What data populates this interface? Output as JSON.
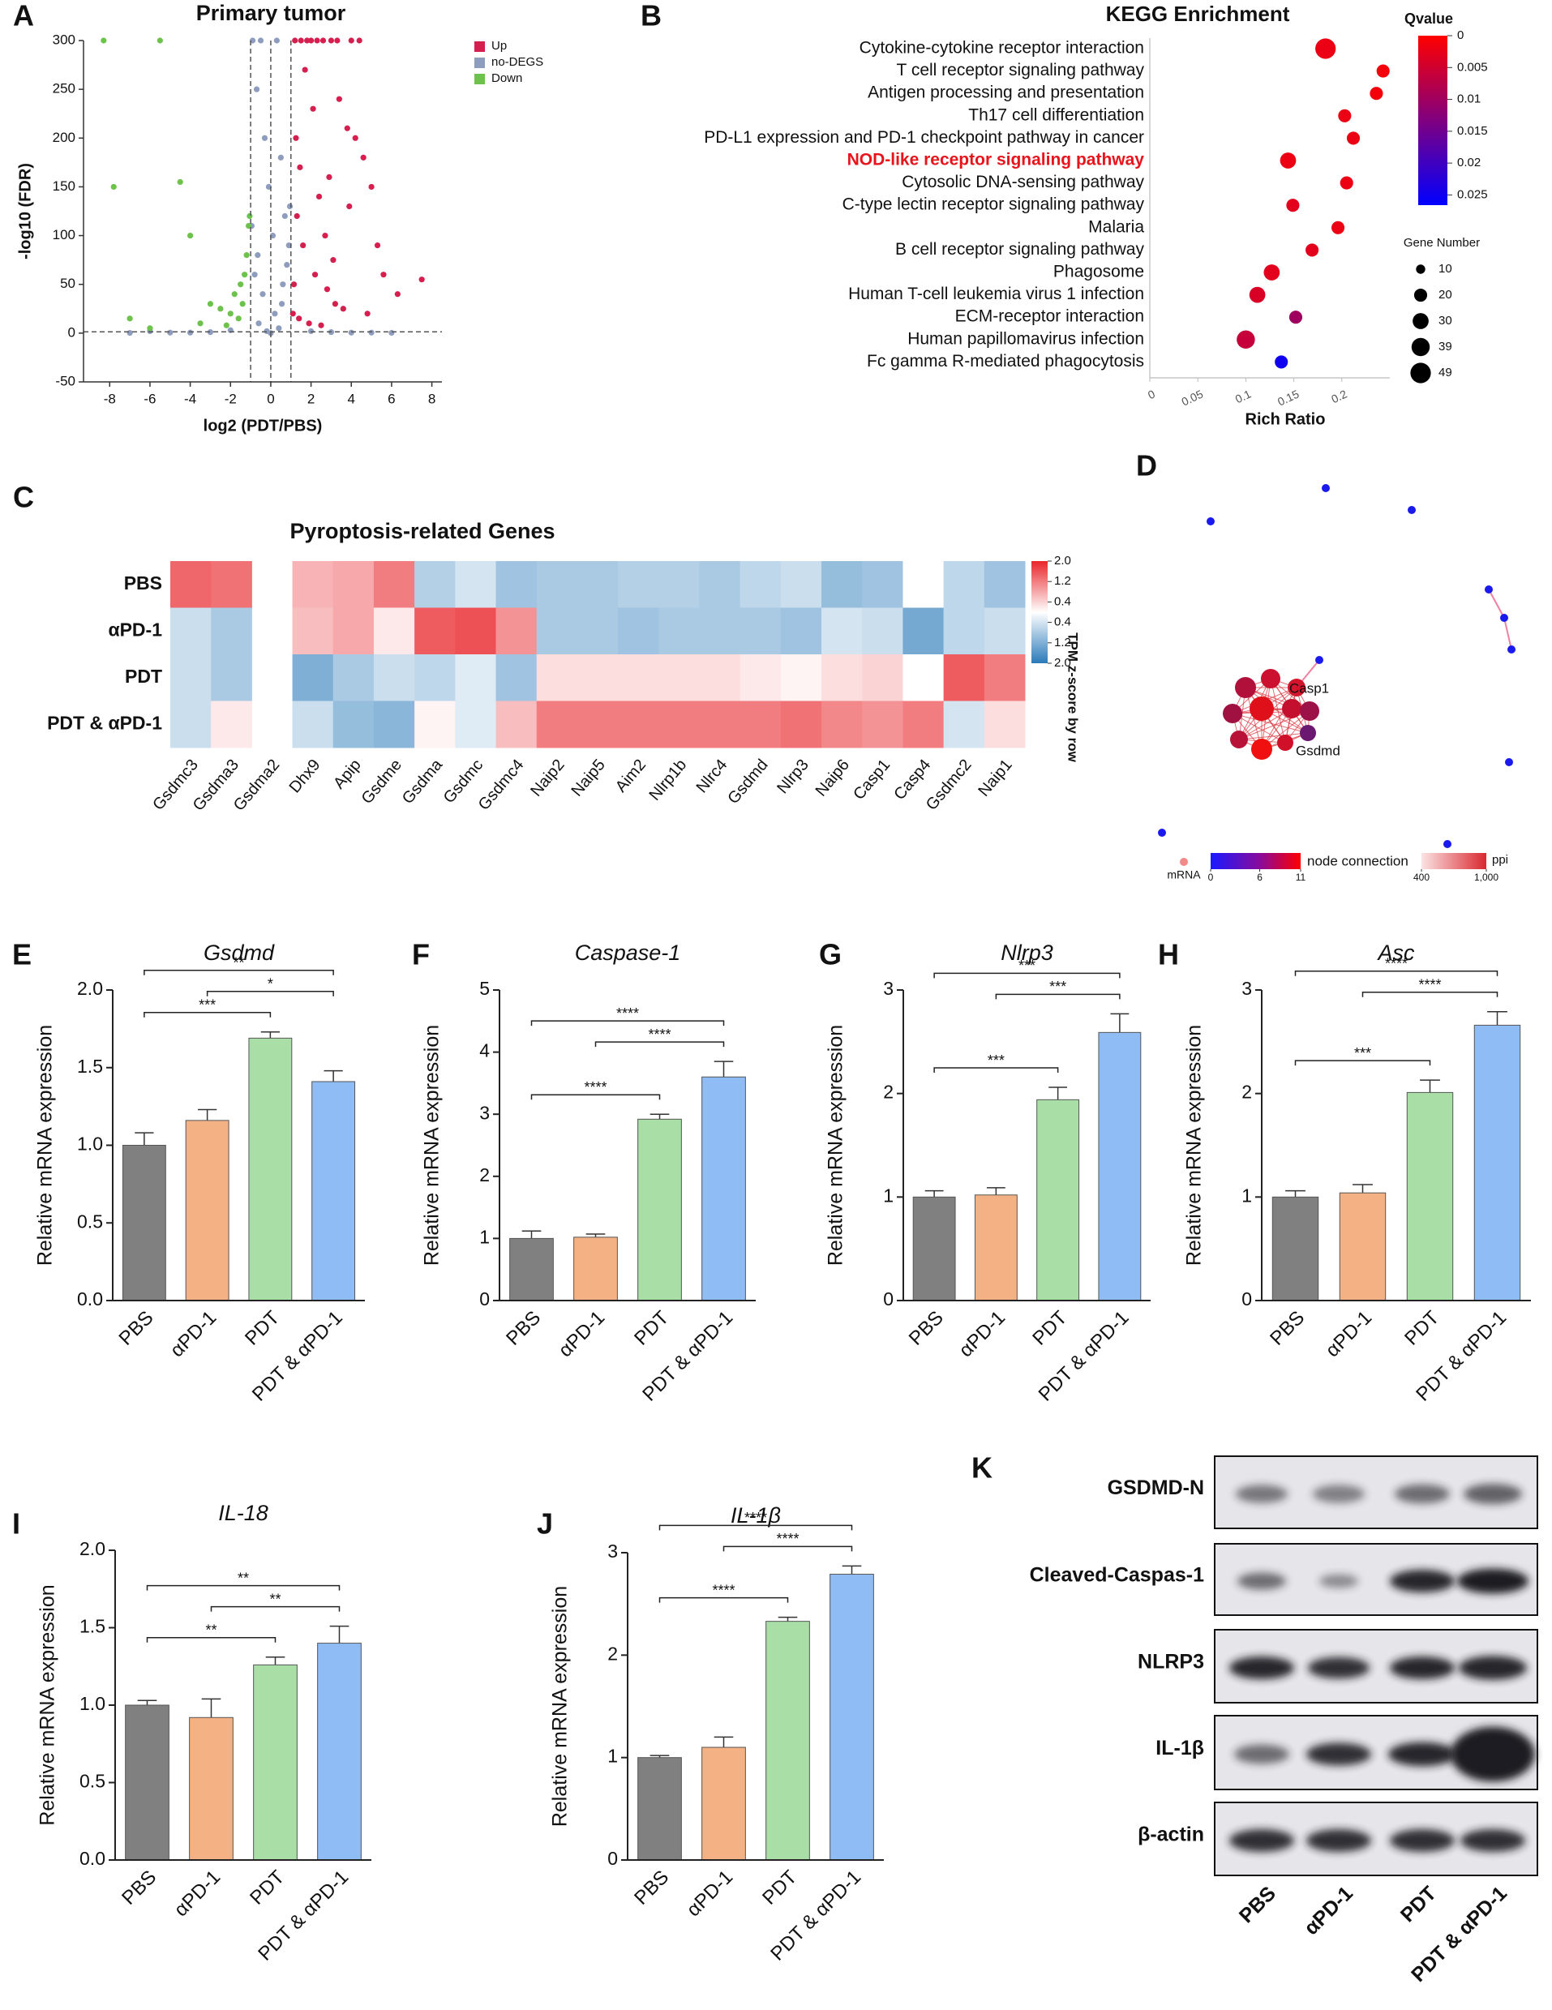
{
  "chart_data": [
    {
      "type": "scatter",
      "panel": "A",
      "title": "Primary tumor",
      "xlabel": "log2 (PDT/PBS)",
      "ylabel": "-log10 (FDR)",
      "xlim": [
        -9.3,
        8.5
      ],
      "ylim": [
        -50,
        300
      ],
      "xticks": [
        -8,
        -6,
        -4,
        -2,
        0,
        2,
        4,
        6,
        8
      ],
      "yticks": [
        -50,
        0,
        50,
        100,
        150,
        200,
        250,
        300
      ],
      "vlines": [
        -1,
        0,
        1
      ],
      "hline": 1.3,
      "series": [
        {
          "name": "Up",
          "color": "#d41f4f",
          "x": [
            1.2,
            1.5,
            1.8,
            2.0,
            2.3,
            2.6,
            3.0,
            3.4,
            3.8,
            4.2,
            4.6,
            5.0,
            5.6,
            6.3,
            7.5,
            1.3,
            1.6,
            2.2,
            2.8,
            3.2,
            1.1,
            1.4,
            1.9,
            2.5,
            3.6,
            4.8,
            2.1,
            1.7,
            3.9,
            2.9,
            3.3,
            4.0,
            4.4,
            1.25,
            1.45,
            2.7,
            3.1,
            1.15,
            2.4,
            5.3
          ],
          "y": [
            300,
            300,
            300,
            300,
            300,
            300,
            300,
            240,
            210,
            200,
            180,
            150,
            60,
            40,
            55,
            120,
            90,
            60,
            45,
            30,
            20,
            15,
            10,
            8,
            25,
            20,
            230,
            270,
            130,
            160,
            300,
            300,
            300,
            200,
            170,
            100,
            75,
            50,
            140,
            90
          ]
        },
        {
          "name": "no-DEGS",
          "color": "#8e9dbd",
          "x": [
            -0.9,
            -0.7,
            -0.5,
            -0.3,
            -0.1,
            0.1,
            0.3,
            0.5,
            0.7,
            0.9,
            -0.8,
            -0.4,
            0.2,
            0.6,
            0.8,
            -0.6,
            0.4,
            -0.2,
            0.0,
            -3,
            -5,
            -6,
            3,
            5,
            -2,
            2,
            -4,
            4,
            -7,
            6,
            -0.95,
            0.95,
            -0.65,
            0.55
          ],
          "y": [
            300,
            250,
            300,
            200,
            150,
            100,
            300,
            180,
            120,
            90,
            60,
            40,
            20,
            50,
            70,
            10,
            5,
            2,
            0,
            1,
            0.5,
            2,
            1,
            0.5,
            3,
            2,
            0.5,
            0.5,
            0.2,
            0.3,
            110,
            130,
            80,
            30
          ]
        },
        {
          "name": "Down",
          "color": "#6cc24a",
          "x": [
            -8.3,
            -7.8,
            -5.5,
            -4.5,
            -4,
            -3,
            -2,
            -1.5,
            -1.2,
            -1.1,
            -1.3,
            -2.5,
            -1.8,
            -3.5,
            -6,
            -7,
            -1.4,
            -1.6,
            -2.2,
            -1.05
          ],
          "y": [
            300,
            150,
            300,
            155,
            100,
            30,
            20,
            50,
            80,
            110,
            60,
            25,
            40,
            10,
            5,
            15,
            30,
            15,
            8,
            120
          ]
        }
      ]
    },
    {
      "type": "bubble",
      "panel": "B",
      "title": "KEGG Enrichment",
      "xlabel": "Rich Ratio",
      "categories": [
        "Cytokine-cytokine receptor interaction",
        "T cell receptor signaling pathway",
        "Antigen processing and presentation",
        "Th17 cell differentiation",
        "PD-L1 expression and PD-1 checkpoint pathway in cancer",
        "NOD-like receptor signaling pathway",
        "Cytosolic DNA-sensing pathway",
        "C-type lectin receptor signaling pathway",
        "Malaria",
        "B cell receptor signaling pathway",
        "Phagosome",
        "Human T-cell leukemia virus 1 infection",
        "ECM-receptor interaction",
        "Human papillomavirus infection",
        "Fc gamma R-mediated phagocytosis"
      ],
      "highlight": "NOD-like receptor signaling pathway",
      "values": [
        0.183,
        0.243,
        0.236,
        0.203,
        0.212,
        0.144,
        0.205,
        0.149,
        0.196,
        0.169,
        0.127,
        0.112,
        0.152,
        0.1,
        0.137
      ],
      "qvalues": [
        0.002,
        0.001,
        0.001,
        0.002,
        0.002,
        0.002,
        0.002,
        0.003,
        0.002,
        0.003,
        0.003,
        0.004,
        0.01,
        0.006,
        0.025
      ],
      "sizes": [
        49,
        20,
        20,
        20,
        20,
        30,
        20,
        20,
        20,
        20,
        30,
        30,
        20,
        39,
        20
      ],
      "xlim": [
        0,
        0.25
      ],
      "xticks": [
        0,
        0.05,
        0.1,
        0.15,
        0.2
      ],
      "qlabel": "Qvalue",
      "qlim": [
        0,
        0.0266
      ],
      "qticks": [
        0,
        0.005,
        0.01,
        0.015,
        0.02,
        0.025
      ],
      "size_label": "Gene Number",
      "size_ticks": [
        10,
        20,
        30,
        39,
        49
      ]
    },
    {
      "type": "heatmap",
      "panel": "C",
      "title": "Pyroptosis-related Genes",
      "colorbar_label": "TPM z-score by row",
      "rows": [
        "PBS",
        "αPD-1",
        "PDT",
        "PDT & αPD-1"
      ],
      "columns": [
        "Gsdmc3",
        "Gsdma3",
        "Gsdma2",
        "Dhx9",
        "Apip",
        "Gsdme",
        "Gsdma",
        "Gsdmc",
        "Gsdmc4",
        "Naip2",
        "Naip5",
        "Aim2",
        "Nlrp1b",
        "Nlrc4",
        "Gsdmd",
        "Nlrp3",
        "Naip6",
        "Casp1",
        "Casp4",
        "Gsdmc2",
        "Naip1"
      ],
      "values": [
        [
          1.4,
          1.3,
          null,
          0.7,
          0.8,
          1.2,
          -0.7,
          -0.4,
          -0.9,
          -0.8,
          -0.8,
          -0.7,
          -0.7,
          -0.8,
          -0.6,
          -0.5,
          -1.0,
          -0.9,
          0.0,
          -0.6,
          -0.9
        ],
        [
          -0.5,
          -0.8,
          null,
          0.6,
          0.8,
          0.2,
          1.5,
          1.6,
          1.0,
          -0.8,
          -0.8,
          -0.9,
          -0.8,
          -0.8,
          -0.8,
          -0.9,
          -0.4,
          -0.5,
          -1.3,
          -0.6,
          -0.5
        ],
        [
          -0.5,
          -0.8,
          null,
          -1.2,
          -0.8,
          -0.5,
          -0.6,
          -0.3,
          -0.9,
          0.3,
          0.3,
          0.3,
          0.3,
          0.3,
          0.2,
          0.1,
          0.3,
          0.4,
          0.0,
          1.5,
          1.2
        ],
        [
          -0.5,
          0.2,
          null,
          -0.5,
          -1.0,
          -1.1,
          0.1,
          -0.3,
          0.6,
          1.2,
          1.2,
          1.2,
          1.2,
          1.2,
          1.2,
          1.3,
          1.1,
          1.0,
          1.2,
          -0.4,
          0.3
        ]
      ],
      "clim": [
        -2,
        2
      ],
      "cticks": [
        {
          "value": 2,
          "label": "2.0"
        },
        1.2,
        0.4,
        {
          "value": -0.4,
          "label": "0.4"
        },
        {
          "value": -1.2,
          "label": "1.2"
        },
        {
          "value": -2,
          "label": "2.0"
        }
      ]
    },
    {
      "type": "bar",
      "panel": "E",
      "title": "Gsdmd",
      "ylabel": "Relative mRNA expression",
      "categories": [
        "PBS",
        "αPD-1",
        "PDT",
        "PDT & αPD-1"
      ],
      "values": [
        1.0,
        1.16,
        1.69,
        1.41
      ],
      "errors": [
        0.08,
        0.07,
        0.04,
        0.07
      ],
      "colors": [
        "#808080",
        "#f4b183",
        "#a9dfa7",
        "#8fbcf5"
      ],
      "ylim": [
        0,
        2
      ],
      "yticks": [
        {
          "value": 0,
          "label": "0.0"
        },
        0.5,
        {
          "value": 1,
          "label": "1.0"
        },
        1.5,
        {
          "value": 2,
          "label": "2.0"
        }
      ],
      "significance": [
        {
          "from": "PBS",
          "to": "PDT",
          "label": "***"
        },
        {
          "from": "αPD-1",
          "to": "PDT & αPD-1",
          "label": "*"
        },
        {
          "from": "PBS",
          "to": "PDT & αPD-1",
          "label": "**"
        }
      ]
    },
    {
      "type": "bar",
      "panel": "F",
      "title": "Caspase-1",
      "ylabel": "Relative mRNA expression",
      "categories": [
        "PBS",
        "αPD-1",
        "PDT",
        "PDT & αPD-1"
      ],
      "values": [
        1.0,
        1.02,
        2.92,
        3.6
      ],
      "errors": [
        0.12,
        0.05,
        0.08,
        0.25
      ],
      "colors": [
        "#808080",
        "#f4b183",
        "#a9dfa7",
        "#8fbcf5"
      ],
      "ylim": [
        0,
        5
      ],
      "yticks": [
        0,
        1,
        2,
        3,
        4,
        5
      ],
      "significance": [
        {
          "from": "PBS",
          "to": "PDT",
          "label": "****"
        },
        {
          "from": "αPD-1",
          "to": "PDT & αPD-1",
          "label": "****"
        },
        {
          "from": "PBS",
          "to": "PDT & αPD-1",
          "label": "****"
        }
      ]
    },
    {
      "type": "bar",
      "panel": "G",
      "title": "Nlrp3",
      "ylabel": "Relative mRNA expression",
      "categories": [
        "PBS",
        "αPD-1",
        "PDT",
        "PDT & αPD-1"
      ],
      "values": [
        1.0,
        1.02,
        1.94,
        2.59
      ],
      "errors": [
        0.06,
        0.07,
        0.12,
        0.18
      ],
      "colors": [
        "#808080",
        "#f4b183",
        "#a9dfa7",
        "#8fbcf5"
      ],
      "ylim": [
        0,
        3
      ],
      "yticks": [
        0,
        1,
        2,
        3
      ],
      "significance": [
        {
          "from": "PBS",
          "to": "PDT",
          "label": "***"
        },
        {
          "from": "αPD-1",
          "to": "PDT & αPD-1",
          "label": "***"
        },
        {
          "from": "PBS",
          "to": "PDT & αPD-1",
          "label": "***"
        }
      ]
    },
    {
      "type": "bar",
      "panel": "H",
      "title": "Asc",
      "ylabel": "Relative mRNA expression",
      "categories": [
        "PBS",
        "αPD-1",
        "PDT",
        "PDT & αPD-1"
      ],
      "values": [
        1.0,
        1.04,
        2.01,
        2.66
      ],
      "errors": [
        0.06,
        0.08,
        0.12,
        0.13
      ],
      "colors": [
        "#808080",
        "#f4b183",
        "#a9dfa7",
        "#8fbcf5"
      ],
      "ylim": [
        0,
        3
      ],
      "yticks": [
        0,
        1,
        2,
        3
      ],
      "significance": [
        {
          "from": "PBS",
          "to": "PDT",
          "label": "***"
        },
        {
          "from": "αPD-1",
          "to": "PDT & αPD-1",
          "label": "****"
        },
        {
          "from": "PBS",
          "to": "PDT & αPD-1",
          "label": "****"
        }
      ]
    },
    {
      "type": "bar",
      "panel": "I",
      "title": "IL-18",
      "ylabel": "Relative mRNA expression",
      "categories": [
        "PBS",
        "αPD-1",
        "PDT",
        "PDT & αPD-1"
      ],
      "values": [
        1.0,
        0.92,
        1.26,
        1.4
      ],
      "errors": [
        0.03,
        0.12,
        0.05,
        0.11
      ],
      "colors": [
        "#808080",
        "#f4b183",
        "#a9dfa7",
        "#8fbcf5"
      ],
      "ylim": [
        0,
        2
      ],
      "yticks": [
        {
          "value": 0,
          "label": "0.0"
        },
        0.5,
        {
          "value": 1,
          "label": "1.0"
        },
        1.5,
        {
          "value": 2,
          "label": "2.0"
        }
      ],
      "significance": [
        {
          "from": "PBS",
          "to": "PDT",
          "label": "**"
        },
        {
          "from": "αPD-1",
          "to": "PDT & αPD-1",
          "label": "**"
        },
        {
          "from": "PBS",
          "to": "PDT & αPD-1",
          "label": "**"
        }
      ]
    },
    {
      "type": "bar",
      "panel": "J",
      "title": "IL-1β",
      "ylabel": "Relative mRNA expression",
      "categories": [
        "PBS",
        "αPD-1",
        "PDT",
        "PDT & αPD-1"
      ],
      "values": [
        1.0,
        1.1,
        2.33,
        2.79
      ],
      "errors": [
        0.02,
        0.1,
        0.04,
        0.08
      ],
      "colors": [
        "#808080",
        "#f4b183",
        "#a9dfa7",
        "#8fbcf5"
      ],
      "ylim": [
        0,
        3
      ],
      "yticks": [
        0,
        1,
        2,
        3
      ],
      "significance": [
        {
          "from": "PBS",
          "to": "PDT",
          "label": "****"
        },
        {
          "from": "αPD-1",
          "to": "PDT & αPD-1",
          "label": "****"
        },
        {
          "from": "PBS",
          "to": "PDT & αPD-1",
          "label": "****"
        }
      ]
    }
  ],
  "network": {
    "panel": "D",
    "labels": [
      "Casp1",
      "Gsdmd"
    ],
    "node_label": "mRNA",
    "scale_label": "node connection",
    "scale_ticks": [
      0,
      6,
      11
    ],
    "ppi_label": "ppi",
    "ppi_ticks": [
      400,
      {
        "value": 1000,
        "label": "1,000"
      }
    ]
  },
  "blot": {
    "panel": "K",
    "rows": [
      "GSDMD-N",
      "Cleaved-Caspas-1",
      "NLRP3",
      "IL-1β",
      "β-actin"
    ],
    "columns": [
      "PBS",
      "αPD-1",
      "PDT",
      "PDT & αPD-1"
    ]
  }
}
